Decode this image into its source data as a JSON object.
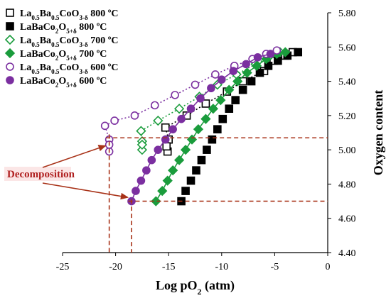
{
  "chart_data": {
    "type": "scatter",
    "xlabel": "Log pO",
    "xlabel_sub": "2",
    "xlabel_unit": " (atm)",
    "ylabel": "Oxygen content",
    "xlim": [
      -25,
      0
    ],
    "ylim": [
      4.4,
      5.8
    ],
    "xticks": [
      -25,
      -20,
      -15,
      -10,
      -5,
      0
    ],
    "yticks": [
      4.4,
      4.6,
      4.8,
      5.0,
      5.2,
      5.4,
      5.6,
      5.8
    ],
    "ytick_labels": [
      "4.40",
      "4.60",
      "4.80",
      "5.00",
      "5.20",
      "5.40",
      "5.60",
      "5.80"
    ],
    "y_axis_side": "right",
    "grid": false,
    "legend_position": "top-left",
    "annotation": {
      "text": "Decomposition",
      "ref_lines": {
        "y": [
          5.07,
          4.7
        ],
        "x": [
          -20.6,
          -18.5
        ]
      },
      "arrows_to": [
        [
          -20.7,
          5.04
        ],
        [
          -18.6,
          4.71
        ]
      ]
    },
    "series": [
      {
        "name_parts": [
          "La",
          "0.5",
          "Ba",
          "0.5",
          "CoO",
          "3-δ",
          " 800 ºC"
        ],
        "marker": "square-open",
        "color": "#000000",
        "line": "dotted",
        "points": [
          [
            -15.3,
            5.13
          ],
          [
            -13.3,
            5.2
          ],
          [
            -11.5,
            5.27
          ],
          [
            -9.5,
            5.34
          ],
          [
            -8.0,
            5.4
          ],
          [
            -6.0,
            5.46
          ],
          [
            -5.1,
            5.52
          ],
          [
            -4.0,
            5.55
          ],
          [
            -3.3,
            5.57
          ],
          [
            -15.0,
            5.06
          ],
          [
            -15.1,
            4.99
          ],
          [
            -15.2,
            5.02
          ]
        ]
      },
      {
        "name_parts": [
          "LaBaCo",
          "2",
          "O",
          "5+δ",
          " 800 ºC"
        ],
        "marker": "square-filled",
        "color": "#000000",
        "line": "none",
        "points": [
          [
            -13.8,
            4.7
          ],
          [
            -13.4,
            4.76
          ],
          [
            -12.9,
            4.82
          ],
          [
            -12.4,
            4.88
          ],
          [
            -11.9,
            4.94
          ],
          [
            -11.4,
            5.0
          ],
          [
            -10.9,
            5.06
          ],
          [
            -10.4,
            5.12
          ],
          [
            -9.9,
            5.18
          ],
          [
            -9.3,
            5.24
          ],
          [
            -8.7,
            5.29
          ],
          [
            -8.0,
            5.35
          ],
          [
            -7.2,
            5.4
          ],
          [
            -6.4,
            5.45
          ],
          [
            -5.6,
            5.49
          ],
          [
            -4.7,
            5.52
          ],
          [
            -3.8,
            5.55
          ],
          [
            -2.8,
            5.57
          ]
        ]
      },
      {
        "name_parts": [
          "La",
          "0.5",
          "Ba",
          "0.5",
          "CoO",
          "3-δ",
          " 700 ºC"
        ],
        "marker": "diamond-open",
        "color": "#1a9c3c",
        "line": "dotted",
        "points": [
          [
            -17.6,
            5.11
          ],
          [
            -16.0,
            5.17
          ],
          [
            -14.0,
            5.24
          ],
          [
            -12.1,
            5.31
          ],
          [
            -10.4,
            5.38
          ],
          [
            -8.6,
            5.44
          ],
          [
            -6.8,
            5.5
          ],
          [
            -5.6,
            5.54
          ],
          [
            -4.5,
            5.57
          ],
          [
            -17.5,
            5.05
          ],
          [
            -17.5,
            5.0
          ],
          [
            -17.5,
            5.03
          ]
        ]
      },
      {
        "name_parts": [
          "LaBaCo",
          "2",
          "O",
          "5+δ",
          " 700 ºC"
        ],
        "marker": "diamond-filled",
        "color": "#1a9c3c",
        "line": "solid",
        "points": [
          [
            -16.2,
            4.7
          ],
          [
            -15.6,
            4.76
          ],
          [
            -15.1,
            4.82
          ],
          [
            -14.6,
            4.88
          ],
          [
            -14.0,
            4.94
          ],
          [
            -13.4,
            5.0
          ],
          [
            -12.8,
            5.06
          ],
          [
            -12.2,
            5.12
          ],
          [
            -11.5,
            5.18
          ],
          [
            -10.8,
            5.24
          ],
          [
            -10.1,
            5.29
          ],
          [
            -9.3,
            5.35
          ],
          [
            -8.5,
            5.4
          ],
          [
            -7.6,
            5.45
          ],
          [
            -6.7,
            5.49
          ],
          [
            -5.8,
            5.53
          ],
          [
            -4.8,
            5.56
          ],
          [
            -4.0,
            5.57
          ]
        ]
      },
      {
        "name_parts": [
          "La",
          "0.5",
          "Ba",
          "0.5",
          "CoO",
          "3-δ",
          " 600 ºC"
        ],
        "marker": "circle-open",
        "color": "#7b2fa0",
        "line": "dotted",
        "points": [
          [
            -21.0,
            5.14
          ],
          [
            -20.1,
            5.17
          ],
          [
            -18.2,
            5.2
          ],
          [
            -16.3,
            5.26
          ],
          [
            -14.4,
            5.32
          ],
          [
            -12.5,
            5.38
          ],
          [
            -10.6,
            5.44
          ],
          [
            -8.8,
            5.49
          ],
          [
            -7.1,
            5.53
          ],
          [
            -5.8,
            5.56
          ],
          [
            -4.8,
            5.58
          ],
          [
            -20.6,
            5.06
          ],
          [
            -20.6,
            4.99
          ],
          [
            -20.6,
            5.03
          ]
        ]
      },
      {
        "name_parts": [
          "LaBaCo",
          "2",
          "O",
          "5+δ",
          " 600 ºC"
        ],
        "marker": "circle-filled",
        "color": "#7b2fa0",
        "line": "solid",
        "points": [
          [
            -18.5,
            4.7
          ],
          [
            -18.1,
            4.76
          ],
          [
            -17.6,
            4.82
          ],
          [
            -17.1,
            4.88
          ],
          [
            -16.6,
            4.94
          ],
          [
            -16.0,
            5.0
          ],
          [
            -15.3,
            5.06
          ],
          [
            -14.6,
            5.12
          ],
          [
            -13.8,
            5.18
          ],
          [
            -12.9,
            5.24
          ],
          [
            -12.0,
            5.3
          ],
          [
            -11.0,
            5.36
          ],
          [
            -10.0,
            5.41
          ],
          [
            -8.9,
            5.46
          ],
          [
            -7.7,
            5.5
          ],
          [
            -6.6,
            5.54
          ],
          [
            -5.4,
            5.56
          ]
        ]
      }
    ]
  },
  "colors": {
    "axis": "#000000",
    "ref_line": "#a83218",
    "annotation_text": "#b02020",
    "annotation_bg": "#fbe6e6"
  }
}
